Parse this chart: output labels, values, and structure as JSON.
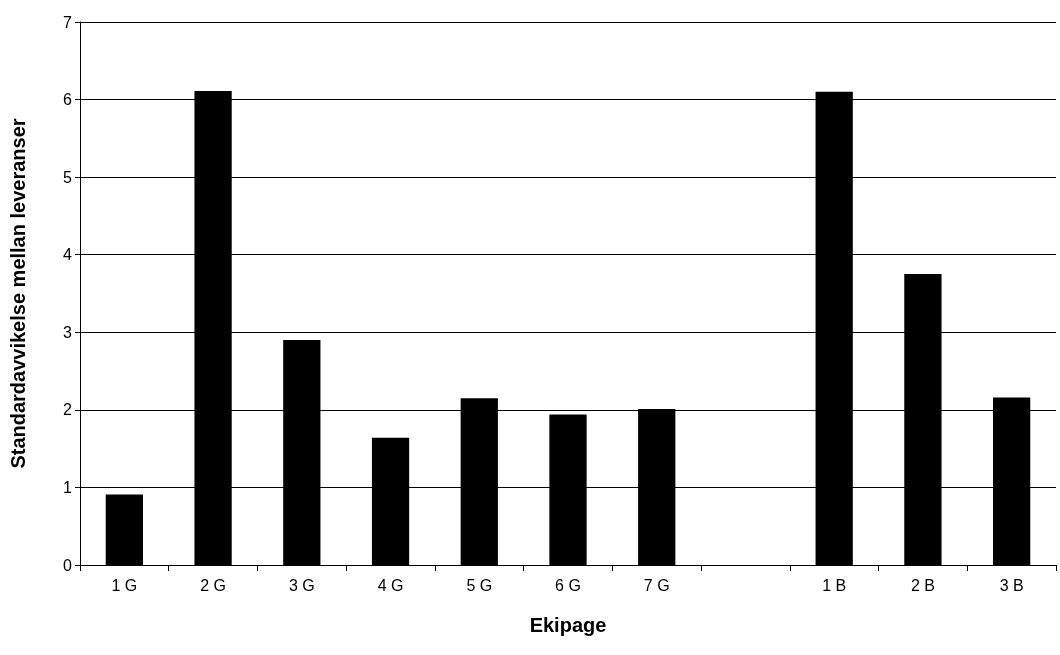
{
  "chart_data": {
    "type": "bar",
    "xlabel": "Ekipage",
    "ylabel": "Standardavvikelse mellan leveranser",
    "categories": [
      "1 G",
      "2 G",
      "3 G",
      "4 G",
      "5 G",
      "6 G",
      "7 G",
      null,
      "1 B",
      "2 B",
      "3 B"
    ],
    "values": [
      0.91,
      6.11,
      2.9,
      1.64,
      2.15,
      1.94,
      2.01,
      null,
      6.1,
      3.75,
      2.16
    ],
    "color": "#000000",
    "ylim": [
      0,
      7
    ],
    "yticks": [
      0,
      1,
      2,
      3,
      4,
      5,
      6,
      7
    ],
    "grid": "y"
  }
}
